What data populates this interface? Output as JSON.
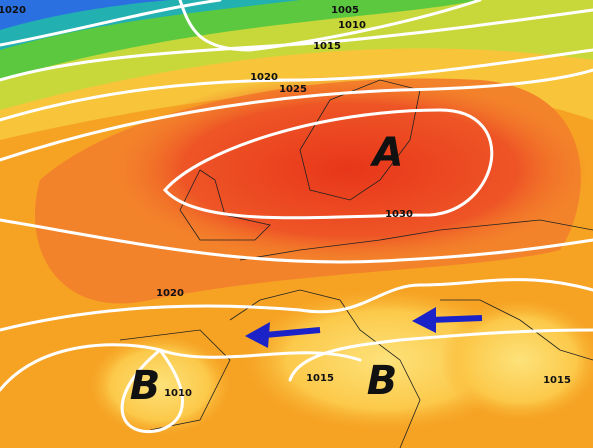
{
  "isobar_labels": [
    "1020",
    "1005",
    "1010",
    "1015",
    "1020",
    "1025",
    "1030",
    "1020",
    "1015",
    "1010",
    "1015"
  ],
  "pressure_centers": [
    {
      "label": "A"
    },
    {
      "label": "B"
    },
    {
      "label": "B"
    }
  ]
}
